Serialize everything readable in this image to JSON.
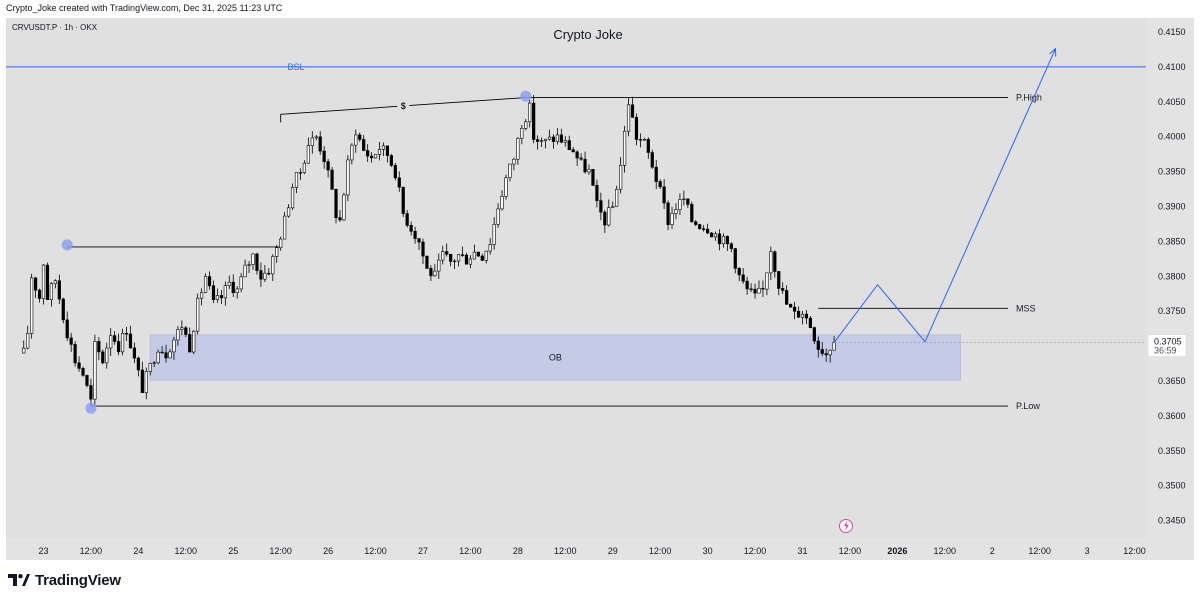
{
  "header": {
    "attribution": "Crypto_Joke created with TradingView.com, Dec 31, 2025 11:23 UTC"
  },
  "footer": {
    "logo_text": "TradingView"
  },
  "colors": {
    "plot_bg": "#e0e0e0",
    "candle": "#000000",
    "accent_blue": "#2962ff",
    "level_line": "#000000",
    "ob_fill": "#c5cbe6",
    "marker": "#8aa0f0",
    "price_tag_bg": "#ffffff",
    "axis_text": "#131722"
  },
  "chart_data": {
    "type": "candlestick",
    "title": "Crypto Joke",
    "symbol": "CRVUSDT.P · 1h · OKX",
    "y_axis": {
      "side": "right",
      "min": 0.3425,
      "max": 0.417,
      "ticks": [
        "0.3450",
        "0.3500",
        "0.3550",
        "0.3600",
        "0.3650",
        "0.3700",
        "0.3750",
        "0.3800",
        "0.3850",
        "0.3900",
        "0.3950",
        "0.4000",
        "0.4050",
        "0.4100",
        "0.4150"
      ]
    },
    "x_axis": {
      "labels": [
        {
          "text": "23",
          "t": 0
        },
        {
          "text": "12:00",
          "t": 12
        },
        {
          "text": "24",
          "t": 24
        },
        {
          "text": "12:00",
          "t": 36
        },
        {
          "text": "25",
          "t": 48
        },
        {
          "text": "12:00",
          "t": 60
        },
        {
          "text": "26",
          "t": 72
        },
        {
          "text": "12:00",
          "t": 84
        },
        {
          "text": "27",
          "t": 96
        },
        {
          "text": "12:00",
          "t": 108
        },
        {
          "text": "28",
          "t": 120
        },
        {
          "text": "12:00",
          "t": 132
        },
        {
          "text": "29",
          "t": 144
        },
        {
          "text": "12:00",
          "t": 156
        },
        {
          "text": "30",
          "t": 168
        },
        {
          "text": "12:00",
          "t": 180
        },
        {
          "text": "31",
          "t": 192
        },
        {
          "text": "12:00",
          "t": 204
        },
        {
          "text": "2026",
          "t": 216,
          "bold": true
        },
        {
          "text": "12:00",
          "t": 228
        },
        {
          "text": "2",
          "t": 240
        },
        {
          "text": "12:00",
          "t": 252
        },
        {
          "text": "3",
          "t": 264
        },
        {
          "text": "12:00",
          "t": 276
        }
      ],
      "first_label_date": "23",
      "last_candle_date": "31 12:00"
    },
    "grid": false,
    "last_price": "0.3705",
    "countdown": "36:59",
    "ohlc_path": [
      [
        -5,
        0.369
      ],
      [
        -4,
        0.372
      ],
      [
        -3,
        0.38
      ],
      [
        -1,
        0.377
      ],
      [
        0,
        0.382
      ],
      [
        1,
        0.377
      ],
      [
        3,
        0.3795
      ],
      [
        6,
        0.372
      ],
      [
        8,
        0.368
      ],
      [
        10,
        0.366
      ],
      [
        12,
        0.362
      ],
      [
        13,
        0.37
      ],
      [
        15,
        0.368
      ],
      [
        17,
        0.372
      ],
      [
        19,
        0.37
      ],
      [
        21,
        0.3725
      ],
      [
        23,
        0.368
      ],
      [
        25,
        0.364
      ],
      [
        27,
        0.367
      ],
      [
        29,
        0.37
      ],
      [
        31,
        0.369
      ],
      [
        33,
        0.371
      ],
      [
        35,
        0.373
      ],
      [
        37,
        0.37
      ],
      [
        39,
        0.376
      ],
      [
        41,
        0.38
      ],
      [
        43,
        0.376
      ],
      [
        45,
        0.377
      ],
      [
        47,
        0.379
      ],
      [
        49,
        0.378
      ],
      [
        51,
        0.381
      ],
      [
        53,
        0.383
      ],
      [
        55,
        0.38
      ],
      [
        57,
        0.381
      ],
      [
        59,
        0.384
      ],
      [
        61,
        0.388
      ],
      [
        63,
        0.393
      ],
      [
        65,
        0.395
      ],
      [
        67,
        0.399
      ],
      [
        69,
        0.4
      ],
      [
        71,
        0.397
      ],
      [
        73,
        0.392
      ],
      [
        74,
        0.389
      ],
      [
        75,
        0.388
      ],
      [
        77,
        0.396
      ],
      [
        79,
        0.401
      ],
      [
        81,
        0.398
      ],
      [
        83,
        0.397
      ],
      [
        85,
        0.3985
      ],
      [
        87,
        0.3975
      ],
      [
        89,
        0.395
      ],
      [
        91,
        0.389
      ],
      [
        93,
        0.387
      ],
      [
        95,
        0.385
      ],
      [
        97,
        0.381
      ],
      [
        99,
        0.38
      ],
      [
        101,
        0.383
      ],
      [
        103,
        0.382
      ],
      [
        105,
        0.383
      ],
      [
        107,
        0.3825
      ],
      [
        109,
        0.3835
      ],
      [
        111,
        0.383
      ],
      [
        113,
        0.385
      ],
      [
        115,
        0.39
      ],
      [
        117,
        0.394
      ],
      [
        119,
        0.397
      ],
      [
        121,
        0.402
      ],
      [
        123,
        0.404
      ],
      [
        124,
        0.4
      ],
      [
        126,
        0.399
      ],
      [
        128,
        0.3995
      ],
      [
        130,
        0.4
      ],
      [
        132,
        0.399
      ],
      [
        134,
        0.398
      ],
      [
        136,
        0.396
      ],
      [
        138,
        0.395
      ],
      [
        140,
        0.39
      ],
      [
        142,
        0.388
      ],
      [
        144,
        0.39
      ],
      [
        146,
        0.396
      ],
      [
        148,
        0.405
      ],
      [
        150,
        0.4
      ],
      [
        152,
        0.399
      ],
      [
        154,
        0.396
      ],
      [
        156,
        0.392
      ],
      [
        158,
        0.388
      ],
      [
        160,
        0.39
      ],
      [
        162,
        0.391
      ],
      [
        164,
        0.388
      ],
      [
        166,
        0.3875
      ],
      [
        168,
        0.387
      ],
      [
        170,
        0.386
      ],
      [
        172,
        0.385
      ],
      [
        174,
        0.384
      ],
      [
        176,
        0.38
      ],
      [
        178,
        0.378
      ],
      [
        180,
        0.377
      ],
      [
        182,
        0.378
      ],
      [
        184,
        0.384
      ],
      [
        186,
        0.379
      ],
      [
        188,
        0.376
      ],
      [
        190,
        0.3745
      ],
      [
        192,
        0.375
      ],
      [
        194,
        0.373
      ],
      [
        196,
        0.37
      ],
      [
        198,
        0.369
      ],
      [
        199,
        0.37
      ],
      [
        200,
        0.3705
      ]
    ],
    "annotations": {
      "BSL": {
        "label": "BSL",
        "price": 0.41,
        "color": "#2962ff"
      },
      "p_high": {
        "label": "P.High",
        "price": 0.4056,
        "t_start": 122,
        "t_end": 244
      },
      "p_low": {
        "label": "P.Low",
        "price": 0.3614,
        "t_start": 12,
        "t_end": 244
      },
      "mss": {
        "label": "MSS",
        "price": 0.3754,
        "t_start": 196,
        "t_end": 244
      },
      "ob": {
        "label": "OB",
        "top": 0.3716,
        "bottom": 0.3651,
        "t_start": 27,
        "t_end": 232
      },
      "prev_high_line": {
        "price": 0.3842,
        "t_start": 6,
        "t_end": 60
      },
      "dollar_trendline": {
        "label": "$",
        "t1": 60,
        "p1": 0.4032,
        "t2": 122,
        "p2": 0.4056
      },
      "markers": [
        {
          "t": 6,
          "price": 0.3845
        },
        {
          "t": 12,
          "price": 0.3611
        },
        {
          "t": 122,
          "price": 0.4058
        }
      ],
      "projection": [
        [
          200,
          0.3705
        ],
        [
          211,
          0.3788
        ],
        [
          223,
          0.3706
        ],
        [
          256,
          0.4126
        ]
      ]
    }
  }
}
